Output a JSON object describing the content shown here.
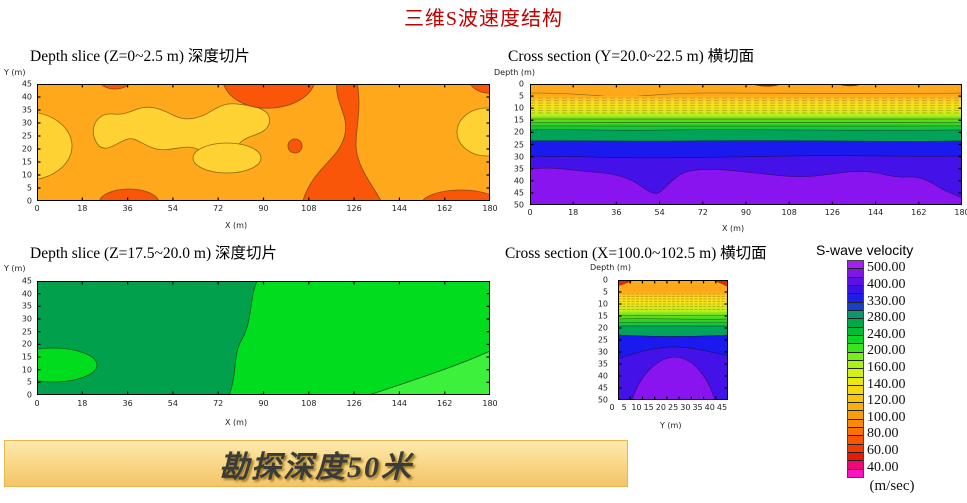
{
  "page": {
    "title": "三维S波速度结构",
    "title_color": "#C00000"
  },
  "banner": {
    "text": "勘探深度50米"
  },
  "legend": {
    "title": "S-wave velocity",
    "units": "(m/sec)",
    "values": [
      "500.00",
      "400.00",
      "330.00",
      "280.00",
      "240.00",
      "200.00",
      "160.00",
      "140.00",
      "120.00",
      "100.00",
      "80.00",
      "60.00",
      "40.00"
    ],
    "colors": [
      "#A021F0",
      "#7E17E6",
      "#5C10E2",
      "#3A10E6",
      "#1E1EE6",
      "#1640C8",
      "#0E9670",
      "#00A84A",
      "#00BE34",
      "#0ED426",
      "#3CE41E",
      "#76EE1A",
      "#AAF216",
      "#D2F014",
      "#EAE812",
      "#F6D810",
      "#F8C40E",
      "#F8B00C",
      "#F89E0A",
      "#F88A08",
      "#F87206",
      "#F85604",
      "#F23A04",
      "#E61A06",
      "#F00878",
      "#F814C0"
    ]
  },
  "panels": {
    "top_left": {
      "title": "Depth slice (Z=0~2.5 m) 深度切片",
      "x_axis": {
        "label": "X (m)",
        "ticks": [
          "0",
          "18",
          "36",
          "54",
          "72",
          "90",
          "108",
          "126",
          "144",
          "162",
          "180"
        ]
      },
      "y_axis": {
        "label": "Y (m)",
        "ticks": [
          "45",
          "40",
          "35",
          "30",
          "25",
          "20",
          "15",
          "10",
          "5",
          "0"
        ]
      }
    },
    "top_right": {
      "title": "Cross section (Y=20.0~22.5 m) 横切面",
      "x_axis": {
        "label": "X (m)",
        "ticks": [
          "0",
          "18",
          "36",
          "54",
          "72",
          "90",
          "108",
          "126",
          "144",
          "162",
          "180"
        ]
      },
      "y_axis": {
        "label": "Depth (m)",
        "ticks": [
          "0",
          "5",
          "10",
          "15",
          "20",
          "25",
          "30",
          "35",
          "40",
          "45",
          "50"
        ]
      }
    },
    "bottom_left": {
      "title": "Depth slice (Z=17.5~20.0 m) 深度切片",
      "x_axis": {
        "label": "X (m)",
        "ticks": [
          "0",
          "18",
          "36",
          "54",
          "72",
          "90",
          "108",
          "126",
          "144",
          "162",
          "180"
        ]
      },
      "y_axis": {
        "label": "Y (m)",
        "ticks": [
          "45",
          "40",
          "35",
          "30",
          "25",
          "20",
          "15",
          "10",
          "5",
          "0"
        ]
      }
    },
    "bottom_right": {
      "title": "Cross section (X=100.0~102.5 m) 横切面",
      "x_axis": {
        "label": "Y (m)",
        "ticks": [
          "0",
          "5",
          "10",
          "15",
          "20",
          "25",
          "30",
          "35",
          "40",
          "45"
        ]
      },
      "y_axis": {
        "label": "Depth (m)",
        "ticks": [
          "0",
          "5",
          "10",
          "15",
          "20",
          "25",
          "30",
          "35",
          "40",
          "45",
          "50"
        ]
      }
    }
  },
  "chart_data": [
    {
      "type": "heatmap",
      "title": "Depth slice (Z=0~2.5 m) 深度切片",
      "xlabel": "X (m)",
      "ylabel": "Y (m)",
      "xlim": [
        0,
        180
      ],
      "ylim": [
        0,
        45
      ],
      "x_ticks": [
        0,
        18,
        36,
        54,
        72,
        90,
        108,
        126,
        144,
        162,
        180
      ],
      "y_ticks": [
        0,
        5,
        10,
        15,
        20,
        25,
        30,
        35,
        40,
        45
      ],
      "value_name": "S-wave velocity (m/sec)",
      "regions": {
        "background_velocity": 100,
        "yellow_patches_velocity": 130,
        "red_patches_velocity": 70,
        "yellow_patch_locations": [
          "left edge Y5-40",
          "upper band X20-100",
          "blob X55-90 Y10-20",
          "right edge Y15-30"
        ],
        "red_patch_locations": [
          "top edge X95-120",
          "top X75-115",
          "vertical tongue X118-135 full height",
          "bottom X25-45",
          "bottom X95-125",
          "bottom right X155-180",
          "small spot X118 Y25"
        ]
      }
    },
    {
      "type": "heatmap",
      "title": "Cross section (Y=20.0~22.5 m) 横切面",
      "xlabel": "X (m)",
      "ylabel": "Depth (m)",
      "xlim": [
        0,
        180
      ],
      "ylim": [
        50,
        0
      ],
      "x_ticks": [
        0,
        18,
        36,
        54,
        72,
        90,
        108,
        126,
        144,
        162,
        180
      ],
      "y_ticks": [
        0,
        5,
        10,
        15,
        20,
        25,
        30,
        35,
        40,
        45,
        50
      ],
      "value_name": "S-wave velocity (m/sec)",
      "layers": [
        {
          "depth_m": [
            0,
            4
          ],
          "velocity_m_per_sec": 100
        },
        {
          "depth_m": [
            4,
            12
          ],
          "velocity_m_per_sec": 140
        },
        {
          "depth_m": [
            12,
            19
          ],
          "velocity_m_per_sec": 220
        },
        {
          "depth_m": [
            19,
            23
          ],
          "velocity_m_per_sec": 280
        },
        {
          "depth_m": [
            23,
            30
          ],
          "velocity_m_per_sec": 330
        },
        {
          "depth_m": [
            30,
            36
          ],
          "velocity_m_per_sec": 400
        },
        {
          "depth_m": [
            36,
            50
          ],
          "velocity_m_per_sec": 500
        }
      ]
    },
    {
      "type": "heatmap",
      "title": "Depth slice (Z=17.5~20.0 m) 深度切片",
      "xlabel": "X (m)",
      "ylabel": "Y (m)",
      "xlim": [
        0,
        180
      ],
      "ylim": [
        0,
        45
      ],
      "x_ticks": [
        0,
        18,
        36,
        54,
        72,
        90,
        108,
        126,
        144,
        162,
        180
      ],
      "y_ticks": [
        0,
        5,
        10,
        15,
        20,
        25,
        30,
        35,
        40,
        45
      ],
      "value_name": "S-wave velocity (m/sec)",
      "regions": {
        "left_region_velocity": 260,
        "right_region_velocity": 220,
        "bottom_right_patch_velocity": 200,
        "boundary": "wavy near X=80-90 full height",
        "bright_blob": "left edge Y8-15"
      }
    },
    {
      "type": "heatmap",
      "title": "Cross section (X=100.0~102.5 m) 横切面",
      "xlabel": "Y (m)",
      "ylabel": "Depth (m)",
      "xlim": [
        0,
        47.5
      ],
      "ylim": [
        50,
        0
      ],
      "x_ticks": [
        0,
        5,
        10,
        15,
        20,
        25,
        30,
        35,
        40,
        45
      ],
      "y_ticks": [
        0,
        5,
        10,
        15,
        20,
        25,
        30,
        35,
        40,
        45,
        50
      ],
      "value_name": "S-wave velocity (m/sec)",
      "layers": [
        {
          "depth_m": [
            0,
            5
          ],
          "velocity_m_per_sec": 100
        },
        {
          "depth_m": [
            5,
            13
          ],
          "velocity_m_per_sec": 140
        },
        {
          "depth_m": [
            13,
            19
          ],
          "velocity_m_per_sec": 220
        },
        {
          "depth_m": [
            19,
            23
          ],
          "velocity_m_per_sec": 280
        },
        {
          "depth_m": [
            23,
            30
          ],
          "velocity_m_per_sec": 330
        },
        {
          "depth_m": [
            30,
            50
          ],
          "velocity_m_per_sec": 400
        },
        {
          "purple_dome": "velocity 500 below 35 m between Y=8 and Y=40"
        }
      ]
    },
    {
      "type": "table",
      "title": "S-wave velocity colour scale",
      "scale_values_m_per_sec": [
        500,
        400,
        330,
        280,
        240,
        200,
        160,
        140,
        120,
        100,
        80,
        60,
        40
      ],
      "units": "m/sec"
    }
  ]
}
